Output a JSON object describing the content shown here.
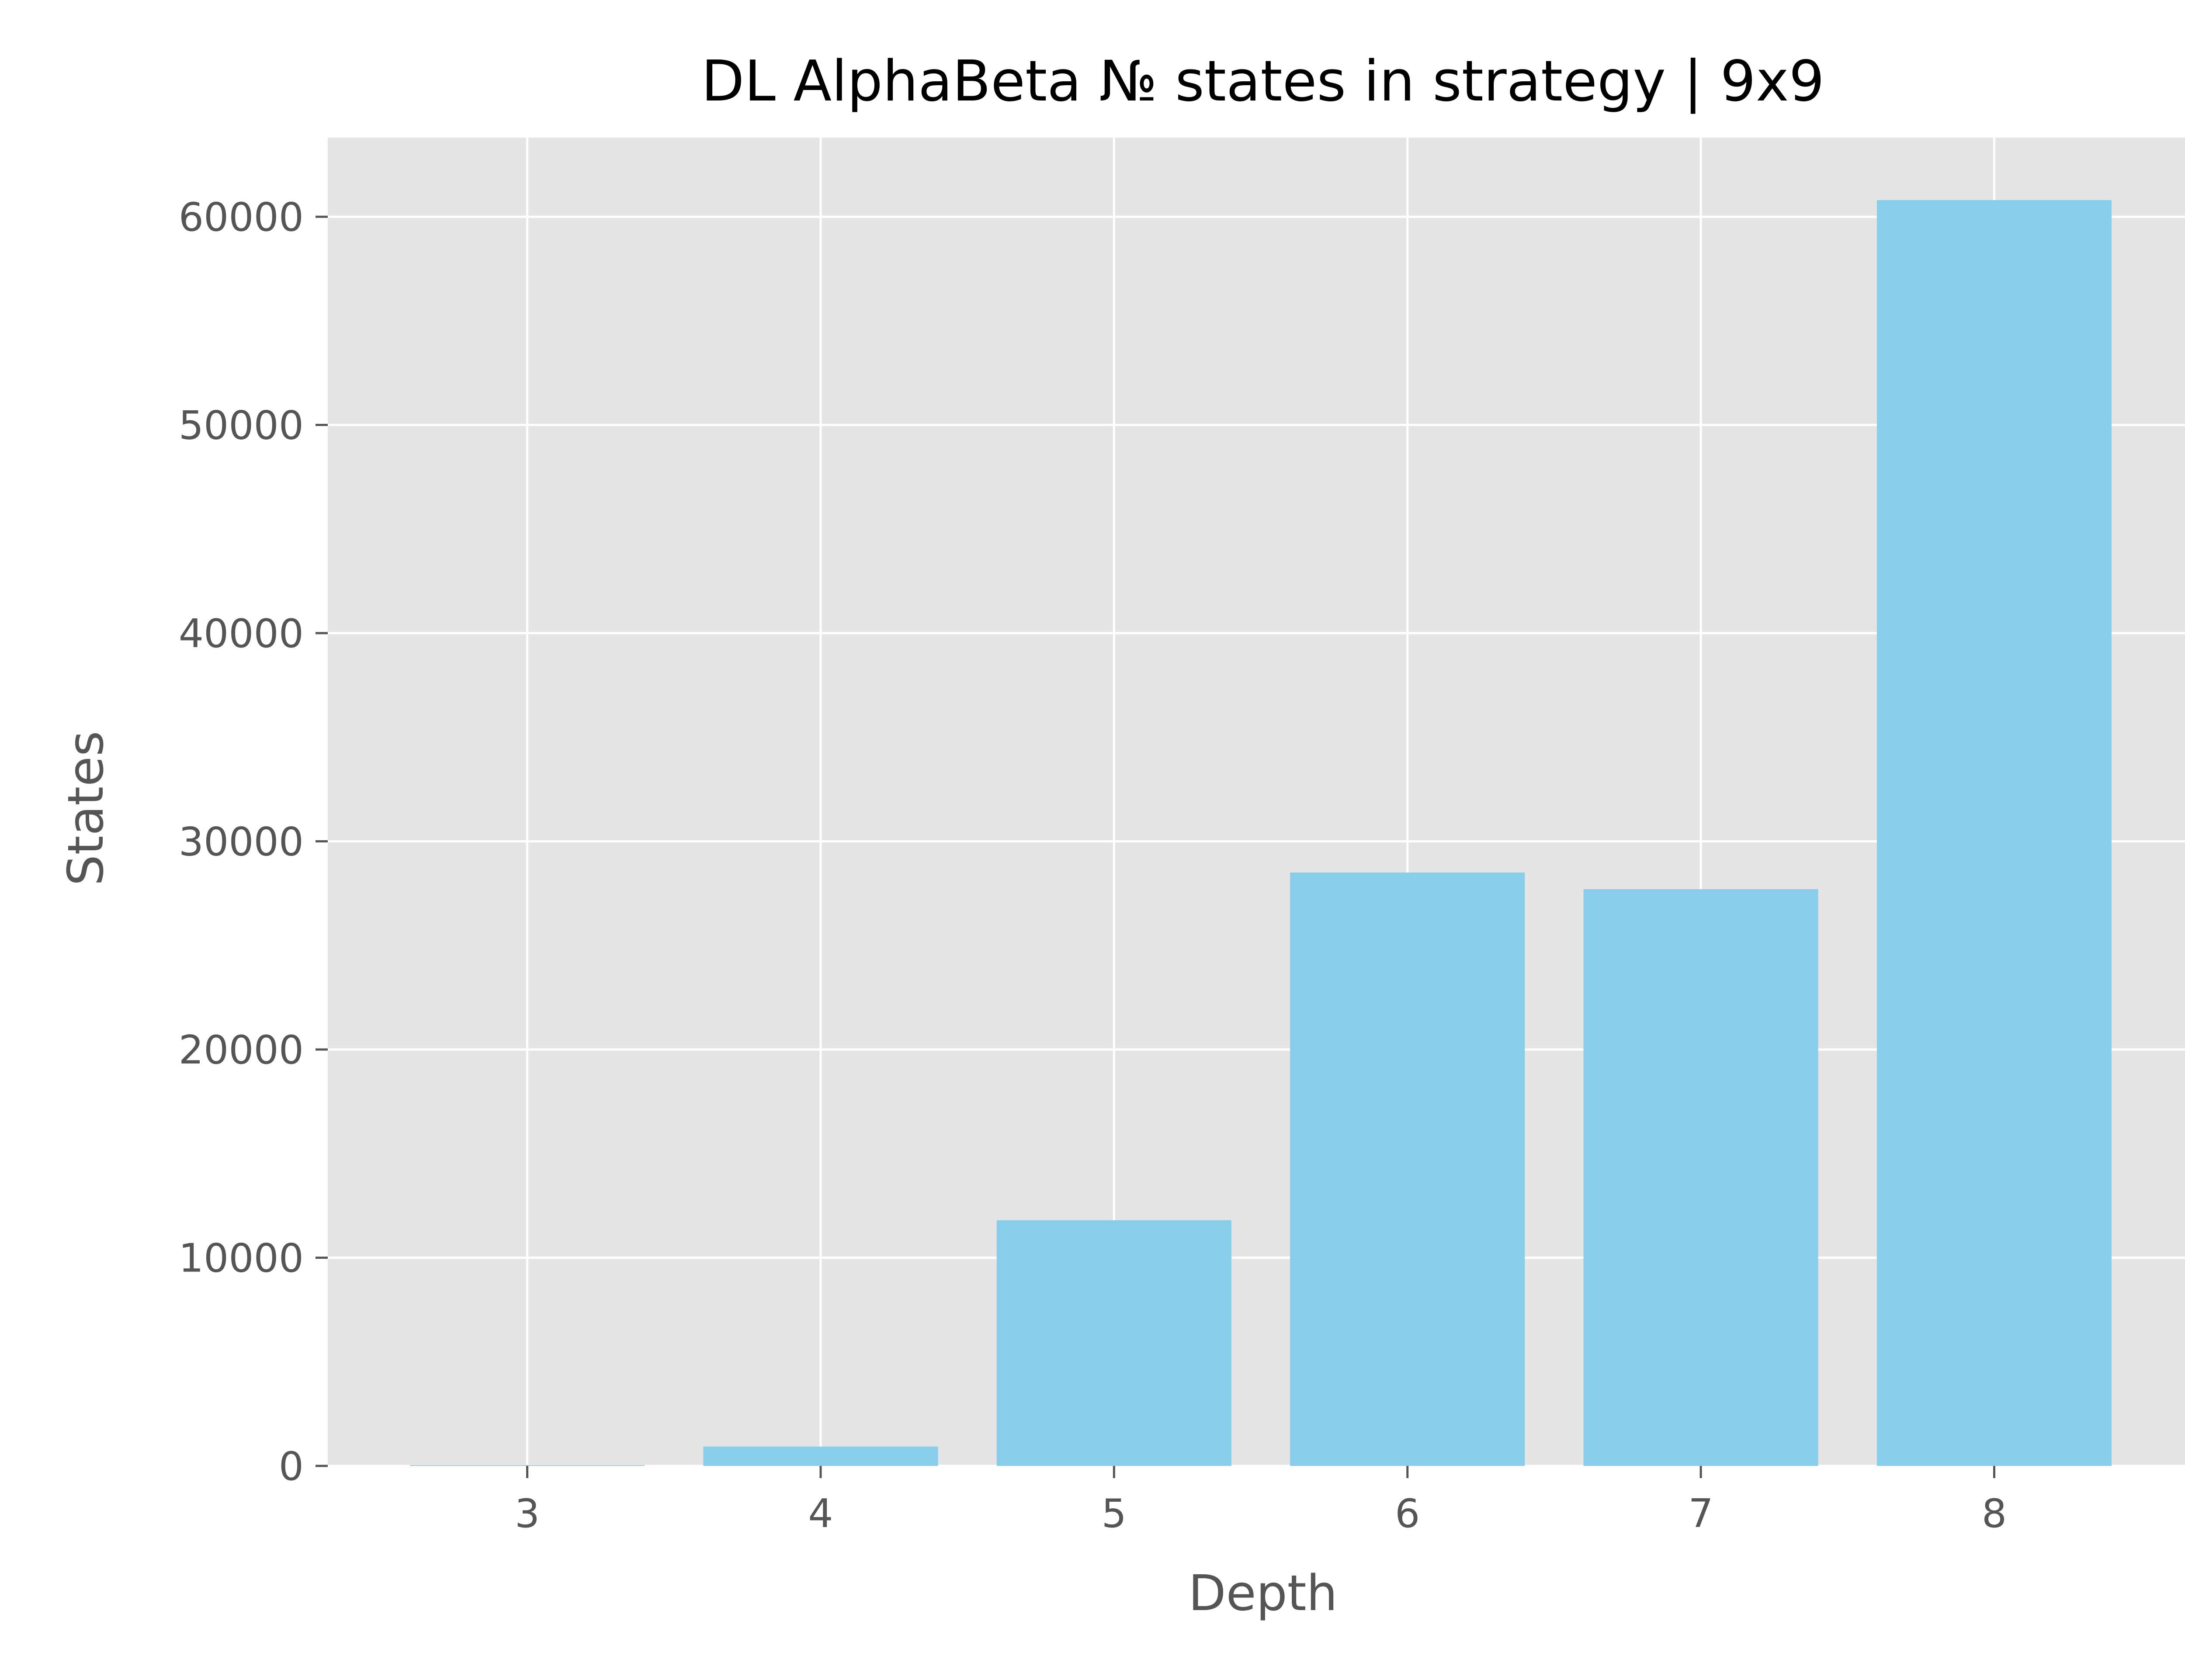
{
  "chart_data": {
    "type": "bar",
    "title": "DL AlphaBeta № states in strategy | 9x9",
    "xlabel": "Depth",
    "ylabel": "States",
    "categories": [
      "3",
      "4",
      "5",
      "6",
      "7",
      "8"
    ],
    "values": [
      40,
      930,
      11800,
      28500,
      27700,
      60800
    ],
    "ylim": [
      0,
      63800
    ],
    "yticks": [
      0,
      10000,
      20000,
      30000,
      40000,
      50000,
      60000
    ],
    "grid": true,
    "colors": {
      "bar": "#87ceeb",
      "plot_background": "#e5e5e5",
      "grid": "#ffffff",
      "tick": "#555555",
      "title": "#000000"
    }
  }
}
